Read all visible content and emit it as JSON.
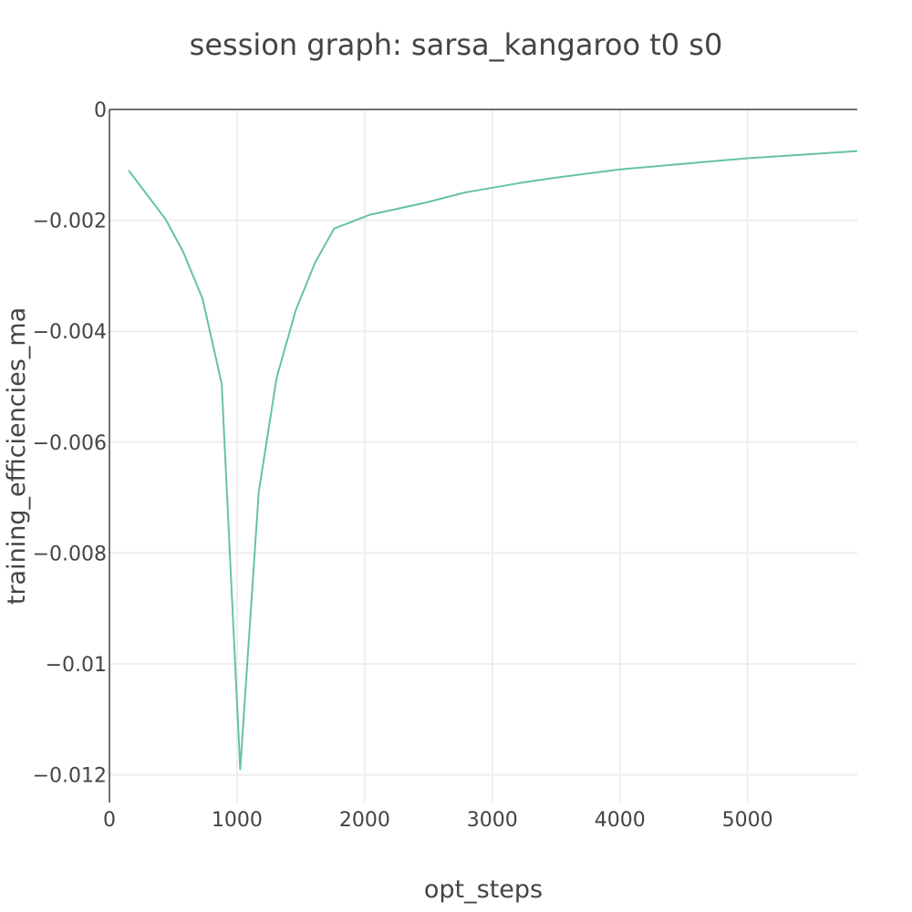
{
  "chart_data": {
    "type": "line",
    "title": "session graph: sarsa_kangaroo t0 s0",
    "xlabel": "opt_steps",
    "ylabel": "training_efficiencies_ma",
    "xlim": [
      0,
      5860
    ],
    "ylim": [
      -0.0125,
      0
    ],
    "x_ticks": [
      0,
      1000,
      2000,
      3000,
      4000,
      5000
    ],
    "x_tick_labels": [
      "0",
      "1000",
      "2000",
      "3000",
      "4000",
      "5000"
    ],
    "y_ticks": [
      0,
      -0.002,
      -0.004,
      -0.006,
      -0.008,
      -0.01,
      -0.012
    ],
    "y_tick_labels": [
      "0",
      "−0.002",
      "−0.004",
      "−0.006",
      "−0.008",
      "−0.01",
      "−0.012"
    ],
    "grid": true,
    "line_color": "#66c2a5",
    "series": [
      {
        "x": [
          150,
          440,
          580,
          730,
          880,
          1025,
          1170,
          1310,
          1460,
          1610,
          1760,
          2040,
          2480,
          2780,
          3230,
          3500,
          4000,
          4500,
          5000,
          5400,
          5860
        ],
        "y": [
          -0.0011,
          -0.00198,
          -0.00258,
          -0.00342,
          -0.00495,
          -0.0119,
          -0.0069,
          -0.00484,
          -0.00362,
          -0.00277,
          -0.00215,
          -0.0019,
          -0.00168,
          -0.0015,
          -0.00132,
          -0.00123,
          -0.00108,
          -0.00098,
          -0.00088,
          -0.00082,
          -0.00075
        ]
      }
    ]
  }
}
